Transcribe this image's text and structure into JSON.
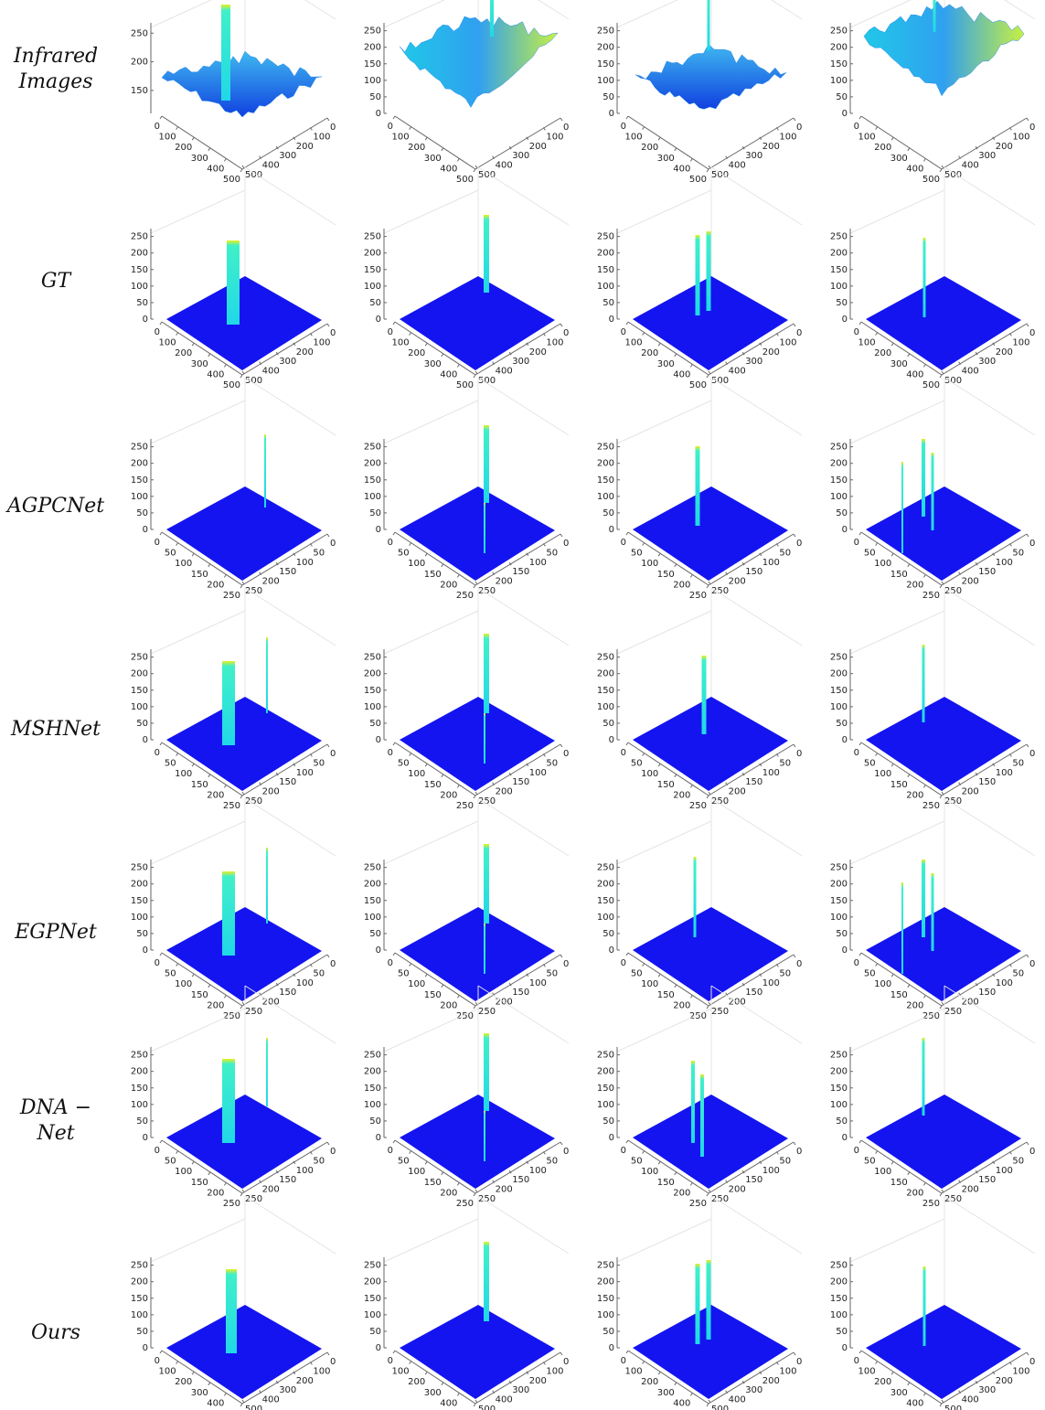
{
  "rows": [
    {
      "label": "Infrared Images",
      "xlim": [
        0,
        500
      ],
      "xticks": [
        0,
        100,
        200,
        300,
        400,
        500
      ],
      "ylim": [
        0,
        500
      ],
      "yticks": [
        0,
        100,
        200,
        300,
        400,
        500
      ],
      "panels": [
        {
          "zlim": [
            110,
            260
          ],
          "zticks": [
            150,
            200,
            250
          ]
        },
        {
          "zlim": [
            0,
            260
          ],
          "zticks": [
            0,
            50,
            100,
            150,
            200,
            250
          ]
        },
        {
          "zlim": [
            0,
            260
          ],
          "zticks": [
            0,
            50,
            100,
            150,
            200,
            250
          ]
        },
        {
          "zlim": [
            0,
            260
          ],
          "zticks": [
            0,
            50,
            100,
            150,
            200,
            250
          ]
        }
      ]
    },
    {
      "label": "GT",
      "xlim": [
        0,
        500
      ],
      "xticks": [
        0,
        100,
        200,
        300,
        400,
        500
      ],
      "ylim": [
        0,
        500
      ],
      "yticks": [
        0,
        100,
        200,
        300,
        400,
        500
      ],
      "panels": [
        {
          "zlim": [
            0,
            260
          ],
          "zticks": [
            0,
            50,
            100,
            150,
            200,
            250
          ]
        },
        {
          "zlim": [
            0,
            260
          ],
          "zticks": [
            0,
            50,
            100,
            150,
            200,
            250
          ]
        },
        {
          "zlim": [
            0,
            260
          ],
          "zticks": [
            0,
            50,
            100,
            150,
            200,
            250
          ]
        },
        {
          "zlim": [
            0,
            260
          ],
          "zticks": [
            0,
            50,
            100,
            150,
            200,
            250
          ]
        }
      ]
    },
    {
      "label": "AGPCNet",
      "xlim": [
        0,
        250
      ],
      "xticks": [
        0,
        50,
        100,
        150,
        200,
        250
      ],
      "ylim": [
        0,
        250
      ],
      "yticks": [
        0,
        50,
        100,
        150,
        200,
        250
      ],
      "panels": [
        {
          "zlim": [
            0,
            260
          ],
          "zticks": [
            0,
            50,
            100,
            150,
            200,
            250
          ]
        },
        {
          "zlim": [
            0,
            260
          ],
          "zticks": [
            0,
            50,
            100,
            150,
            200,
            250
          ]
        },
        {
          "zlim": [
            0,
            260
          ],
          "zticks": [
            0,
            50,
            100,
            150,
            200,
            250
          ]
        },
        {
          "zlim": [
            0,
            260
          ],
          "zticks": [
            0,
            50,
            100,
            150,
            200,
            250
          ]
        }
      ]
    },
    {
      "label": "MSHNet",
      "xlim": [
        0,
        250
      ],
      "xticks": [
        0,
        50,
        100,
        150,
        200,
        250
      ],
      "ylim": [
        0,
        250
      ],
      "yticks": [
        0,
        50,
        100,
        150,
        200,
        250
      ],
      "panels": [
        {
          "zlim": [
            0,
            260
          ],
          "zticks": [
            0,
            50,
            100,
            150,
            200,
            250
          ]
        },
        {
          "zlim": [
            0,
            260
          ],
          "zticks": [
            0,
            50,
            100,
            150,
            200,
            250
          ]
        },
        {
          "zlim": [
            0,
            260
          ],
          "zticks": [
            0,
            50,
            100,
            150,
            200,
            250
          ]
        },
        {
          "zlim": [
            0,
            260
          ],
          "zticks": [
            0,
            50,
            100,
            150,
            200,
            250
          ]
        }
      ]
    },
    {
      "label": "EGPNet",
      "xlim": [
        0,
        250
      ],
      "xticks": [
        0,
        50,
        100,
        150,
        200,
        250
      ],
      "ylim": [
        0,
        250
      ],
      "yticks": [
        0,
        50,
        100,
        150,
        200,
        250
      ],
      "panels": [
        {
          "zlim": [
            0,
            260
          ],
          "zticks": [
            0,
            50,
            100,
            150,
            200,
            250
          ]
        },
        {
          "zlim": [
            0,
            260
          ],
          "zticks": [
            0,
            50,
            100,
            150,
            200,
            250
          ]
        },
        {
          "zlim": [
            0,
            260
          ],
          "zticks": [
            0,
            50,
            100,
            150,
            200,
            250
          ]
        },
        {
          "zlim": [
            0,
            260
          ],
          "zticks": [
            0,
            50,
            100,
            150,
            200,
            250
          ]
        }
      ]
    },
    {
      "label": "DNA − Net",
      "xlim": [
        0,
        250
      ],
      "xticks": [
        0,
        50,
        100,
        150,
        200,
        250
      ],
      "ylim": [
        0,
        250
      ],
      "yticks": [
        0,
        50,
        100,
        150,
        200,
        250
      ],
      "panels": [
        {
          "zlim": [
            0,
            260
          ],
          "zticks": [
            0,
            50,
            100,
            150,
            200,
            250
          ]
        },
        {
          "zlim": [
            0,
            260
          ],
          "zticks": [
            0,
            50,
            100,
            150,
            200,
            250
          ]
        },
        {
          "zlim": [
            0,
            260
          ],
          "zticks": [
            0,
            50,
            100,
            150,
            200,
            250
          ]
        },
        {
          "zlim": [
            0,
            260
          ],
          "zticks": [
            0,
            50,
            100,
            150,
            200,
            250
          ]
        }
      ]
    },
    {
      "label": "Ours",
      "xlim": [
        0,
        500
      ],
      "xticks": [
        0,
        100,
        200,
        300,
        400,
        500
      ],
      "ylim": [
        0,
        500
      ],
      "yticks": [
        0,
        100,
        200,
        300,
        400,
        500
      ],
      "panels": [
        {
          "zlim": [
            0,
            260
          ],
          "zticks": [
            0,
            50,
            100,
            150,
            200,
            250
          ]
        },
        {
          "zlim": [
            0,
            260
          ],
          "zticks": [
            0,
            50,
            100,
            150,
            200,
            250
          ]
        },
        {
          "zlim": [
            0,
            260
          ],
          "zticks": [
            0,
            50,
            100,
            150,
            200,
            250
          ]
        },
        {
          "zlim": [
            0,
            260
          ],
          "zticks": [
            0,
            50,
            100,
            150,
            200,
            250
          ]
        }
      ]
    }
  ]
}
